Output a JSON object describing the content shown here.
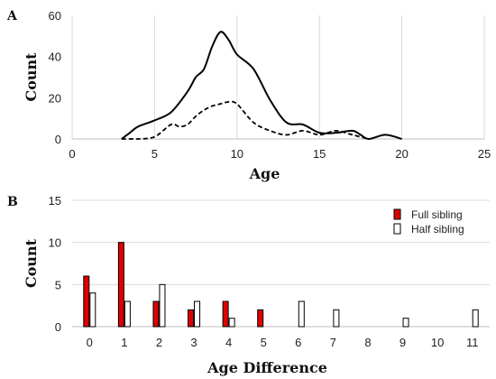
{
  "chart_data": [
    {
      "panel": "A",
      "type": "line",
      "xlabel": "Age",
      "ylabel": "Count",
      "xlim": [
        0,
        25
      ],
      "ylim": [
        0,
        60
      ],
      "xticks": [
        0,
        5,
        10,
        15,
        20,
        25
      ],
      "yticks": [
        0,
        20,
        40,
        60
      ],
      "grid": "vertical",
      "series": [
        {
          "style": "solid",
          "x": [
            3,
            3.5,
            4,
            5,
            6,
            7,
            7.5,
            8,
            8.5,
            9,
            9.5,
            10,
            11,
            12,
            13,
            14,
            15,
            16,
            17,
            17.5,
            18,
            19,
            20
          ],
          "y": [
            0,
            3,
            6,
            9,
            13,
            23,
            30,
            34,
            45,
            52,
            48,
            41,
            34,
            19,
            8,
            7,
            3,
            3,
            4,
            2,
            0,
            2,
            0
          ]
        },
        {
          "style": "dashed",
          "x": [
            3,
            4,
            5,
            6,
            6.5,
            7,
            7.5,
            8,
            8.5,
            9,
            9.5,
            10,
            11,
            12,
            13,
            14,
            15,
            16,
            17,
            18
          ],
          "y": [
            0,
            0,
            1,
            7,
            6,
            7,
            11,
            14,
            16,
            17,
            18,
            17,
            8,
            4,
            2,
            4,
            2,
            4,
            2,
            0
          ]
        }
      ]
    },
    {
      "panel": "B",
      "type": "bar",
      "xlabel": "Age Difference",
      "ylabel": "Count",
      "ylim": [
        0,
        15
      ],
      "yticks": [
        0,
        5,
        10,
        15
      ],
      "grid": "horizontal",
      "legend_position": "top-right",
      "categories": [
        "0",
        "1",
        "2",
        "3",
        "4",
        "5",
        "6",
        "7",
        "8",
        "9",
        "10",
        "11"
      ],
      "series": [
        {
          "name": "Full sibling",
          "color": "#e00000",
          "values": [
            6,
            10,
            3,
            2,
            3,
            2,
            0,
            0,
            0,
            0,
            0,
            0
          ]
        },
        {
          "name": "Half sibling",
          "color": "#ffffff",
          "values": [
            4,
            3,
            5,
            3,
            1,
            0,
            3,
            2,
            0,
            1,
            0,
            2
          ]
        }
      ]
    }
  ]
}
